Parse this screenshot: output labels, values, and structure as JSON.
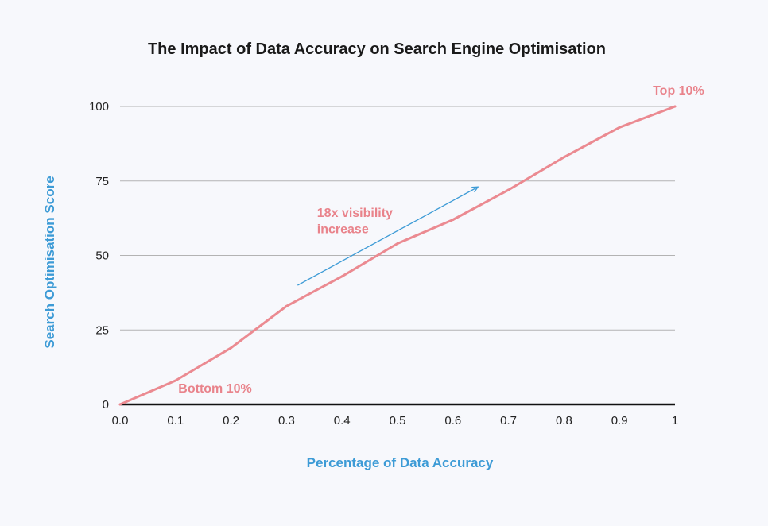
{
  "chart_data": {
    "type": "line",
    "title": "The Impact of Data Accuracy on Search Engine Optimisation",
    "xlabel": "Percentage of Data Accuracy",
    "ylabel": "Search Optimisation Score",
    "xlim": [
      0,
      1
    ],
    "ylim": [
      0,
      100
    ],
    "x_ticks": [
      {
        "value": 0.0,
        "label": "0.0"
      },
      {
        "value": 0.1,
        "label": "0.1"
      },
      {
        "value": 0.2,
        "label": "0.2"
      },
      {
        "value": 0.3,
        "label": "0.3"
      },
      {
        "value": 0.4,
        "label": "0.4"
      },
      {
        "value": 0.5,
        "label": "0.5"
      },
      {
        "value": 0.6,
        "label": "0.6"
      },
      {
        "value": 0.7,
        "label": "0.7"
      },
      {
        "value": 0.8,
        "label": "0.8"
      },
      {
        "value": 0.9,
        "label": "0.9"
      },
      {
        "value": 1.0,
        "label": "1"
      }
    ],
    "y_ticks": [
      {
        "value": 0,
        "label": "0"
      },
      {
        "value": 25,
        "label": "25"
      },
      {
        "value": 50,
        "label": "50"
      },
      {
        "value": 75,
        "label": "75"
      },
      {
        "value": 100,
        "label": "100"
      }
    ],
    "grid": "horizontal",
    "series": [
      {
        "color": "#eb8a91",
        "x": [
          0.0,
          0.1,
          0.2,
          0.25,
          0.3,
          0.4,
          0.5,
          0.6,
          0.7,
          0.8,
          0.9,
          1.0
        ],
        "y": [
          0,
          8,
          19,
          26,
          33,
          43,
          54,
          62,
          72,
          83,
          93,
          100
        ]
      }
    ],
    "annotations": [
      {
        "text": "Top 10%",
        "x": 0.96,
        "y": 104,
        "color": "#e9838b"
      },
      {
        "text": "Bottom 10%",
        "x": 0.105,
        "y": 4,
        "color": "#e9838b"
      },
      {
        "text": "18x visibility",
        "x": 0.355,
        "y": 63,
        "color": "#e9838b"
      },
      {
        "text": "increase",
        "x": 0.355,
        "y": 57.5,
        "color": "#e9838b"
      }
    ],
    "arrow": {
      "x1": 0.32,
      "y1": 40,
      "x2": 0.645,
      "y2": 73,
      "color": "#3d9bd6"
    }
  },
  "colors": {
    "background": "#f7f8fc",
    "grid": "#b3b3b3",
    "baseline": "#111111",
    "line": "#eb8a91",
    "axis_label": "#3d9bd6"
  }
}
